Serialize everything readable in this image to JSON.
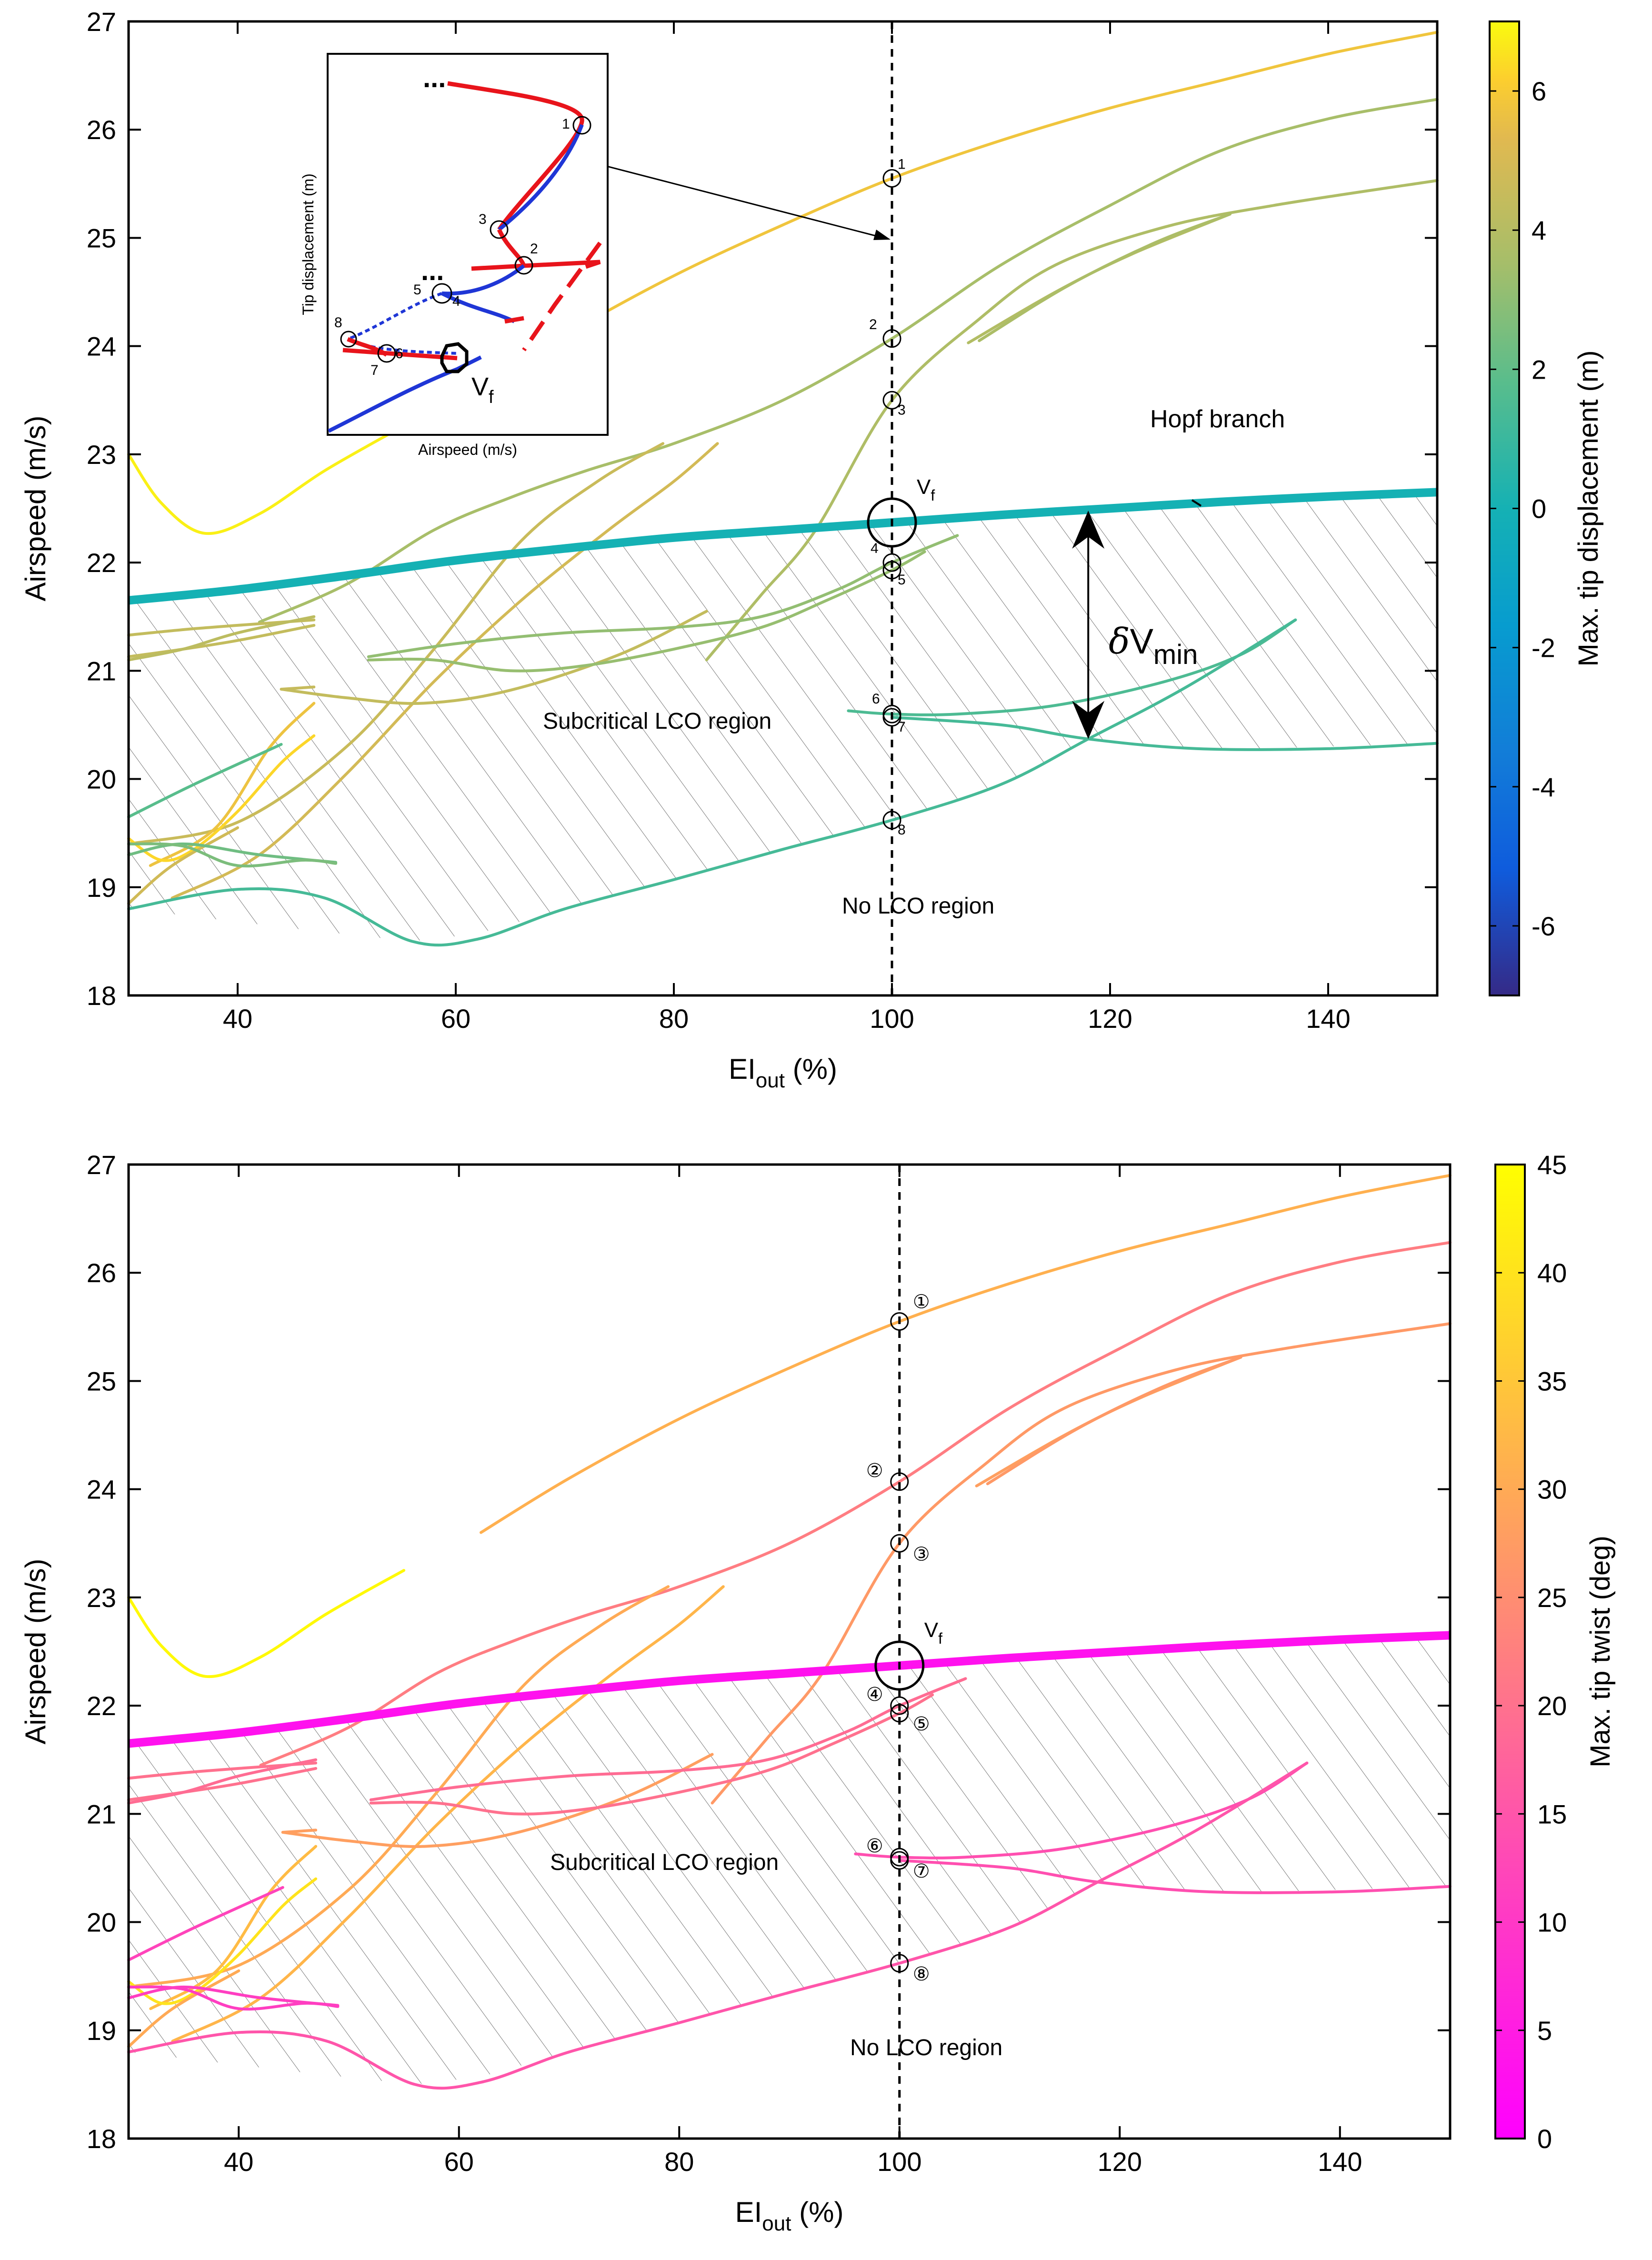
{
  "figure": {
    "panel_count": 2
  },
  "chart_data": [
    {
      "type": "line",
      "panel": "top",
      "xlabel": {
        "main": "EI",
        "sub": "out",
        "suffix": " (%)"
      },
      "ylabel": "Airspeed (m/s)",
      "xlim": [
        30,
        150
      ],
      "ylim": [
        18,
        27
      ],
      "xticks": [
        40,
        60,
        80,
        100,
        120,
        140
      ],
      "yticks": [
        18,
        19,
        20,
        21,
        22,
        23,
        24,
        25,
        26,
        27
      ],
      "colorbar": {
        "label": "Max. tip displacement (m)",
        "range": [
          -7,
          7
        ],
        "ticks": [
          -6,
          -4,
          -2,
          0,
          2,
          4,
          6
        ],
        "colormap": "parula",
        "stops": [
          "#352a87",
          "#0363e1",
          "#1485d4",
          "#06a7c6",
          "#38b99e",
          "#92bf73",
          "#d9ba56",
          "#fcce2e",
          "#f9fb0e"
        ]
      },
      "annotations": {
        "hopf_label": "Hopf branch",
        "subcritical_label": "Subcritical LCO region",
        "no_lco_label": "No LCO region",
        "vf_main": "V",
        "vf_sub": "f",
        "delta_prefix": "δ",
        "delta_main": "V",
        "delta_sub": "min"
      },
      "point_label_style": "plain",
      "inset": {
        "xlabel": "Airspeed (m/s)",
        "ylabel": "Tip displacement (m)",
        "ellipsis": "...",
        "vf_main": "V",
        "vf_sub": "f",
        "point_labels": [
          "1",
          "2",
          "3",
          "4",
          "5",
          "6",
          "7",
          "8"
        ]
      }
    },
    {
      "type": "line",
      "panel": "bottom",
      "xlabel": {
        "main": "EI",
        "sub": "out",
        "suffix": " (%)"
      },
      "ylabel": "Airspeed (m/s)",
      "xlim": [
        30,
        150
      ],
      "ylim": [
        18,
        27
      ],
      "xticks": [
        40,
        60,
        80,
        100,
        120,
        140
      ],
      "yticks": [
        18,
        19,
        20,
        21,
        22,
        23,
        24,
        25,
        26,
        27
      ],
      "colorbar": {
        "label": "Max. tip twist (deg)",
        "range": [
          0,
          45
        ],
        "ticks": [
          0,
          5,
          10,
          15,
          20,
          25,
          30,
          35,
          40,
          45
        ],
        "colormap": "spring",
        "stops": [
          "#ff00ff",
          "#ffffff00",
          "#ffff00"
        ]
      },
      "annotations": {
        "subcritical_label": "Subcritical LCO region",
        "no_lco_label": "No LCO region",
        "vf_main": "V",
        "vf_sub": "f"
      },
      "point_label_style": "circled"
    }
  ],
  "shared": {
    "vertical_line_x": 100,
    "flutter_point": {
      "x": 100,
      "y": 22.37
    },
    "marked_points": [
      {
        "label": "1",
        "circled": "①",
        "x": 100,
        "y": 25.55
      },
      {
        "label": "2",
        "circled": "②",
        "x": 100,
        "y": 24.07
      },
      {
        "label": "3",
        "circled": "③",
        "x": 100,
        "y": 23.5
      },
      {
        "label": "4",
        "circled": "④",
        "x": 100,
        "y": 22.0
      },
      {
        "label": "5",
        "circled": "⑤",
        "x": 100,
        "y": 21.93
      },
      {
        "label": "6",
        "circled": "⑥",
        "x": 100,
        "y": 20.6
      },
      {
        "label": "7",
        "circled": "⑦",
        "x": 100,
        "y": 20.57
      },
      {
        "label": "8",
        "circled": "⑧",
        "x": 100,
        "y": 19.62
      }
    ],
    "delta_vmin": {
      "x": 118,
      "y_low": 20.37,
      "y_high": 22.48
    },
    "hopf_branch": {
      "disp": 0.0,
      "twist": 3,
      "points": [
        [
          30,
          21.65
        ],
        [
          40,
          21.75
        ],
        [
          50,
          21.88
        ],
        [
          60,
          22.02
        ],
        [
          70,
          22.13
        ],
        [
          80,
          22.23
        ],
        [
          90,
          22.3
        ],
        [
          100,
          22.37
        ],
        [
          110,
          22.44
        ],
        [
          120,
          22.5
        ],
        [
          130,
          22.56
        ],
        [
          140,
          22.61
        ],
        [
          150,
          22.65
        ]
      ]
    },
    "hatched_region": [
      [
        30,
        21.65
      ],
      [
        40,
        21.75
      ],
      [
        50,
        21.88
      ],
      [
        60,
        22.02
      ],
      [
        70,
        22.13
      ],
      [
        80,
        22.23
      ],
      [
        90,
        22.3
      ],
      [
        100,
        22.37
      ],
      [
        110,
        22.44
      ],
      [
        120,
        22.5
      ],
      [
        130,
        22.56
      ],
      [
        140,
        22.61
      ],
      [
        150,
        22.65
      ],
      [
        150,
        20.33
      ],
      [
        140,
        20.3
      ],
      [
        130,
        20.27
      ],
      [
        118,
        20.37
      ],
      [
        110,
        19.95
      ],
      [
        100,
        19.62
      ],
      [
        90,
        19.35
      ],
      [
        80,
        19.07
      ],
      [
        70,
        18.8
      ],
      [
        62,
        18.57
      ],
      [
        56,
        18.5
      ],
      [
        45,
        18.62
      ],
      [
        30,
        18.8
      ]
    ],
    "lco_branches": [
      {
        "disp": 6.8,
        "twist": 44,
        "points": [
          [
            30,
            23.0
          ],
          [
            33,
            22.55
          ],
          [
            37,
            22.27
          ],
          [
            42,
            22.45
          ],
          [
            48,
            22.85
          ],
          [
            55,
            23.25
          ]
        ]
      },
      {
        "disp": 5.8,
        "twist": 31,
        "points": [
          [
            62,
            23.6
          ],
          [
            70,
            24.1
          ],
          [
            80,
            24.65
          ],
          [
            90,
            25.12
          ],
          [
            100,
            25.55
          ],
          [
            110,
            25.9
          ],
          [
            120,
            26.2
          ],
          [
            130,
            26.45
          ],
          [
            140,
            26.7
          ],
          [
            150,
            26.9
          ]
        ]
      },
      {
        "disp": 3.6,
        "twist": 22,
        "points": [
          [
            42,
            21.45
          ],
          [
            50,
            21.8
          ],
          [
            58,
            22.3
          ],
          [
            65,
            22.6
          ],
          [
            72,
            22.85
          ],
          [
            80,
            23.1
          ],
          [
            90,
            23.5
          ],
          [
            100,
            24.07
          ],
          [
            110,
            24.75
          ],
          [
            120,
            25.3
          ],
          [
            130,
            25.8
          ],
          [
            140,
            26.1
          ],
          [
            150,
            26.28
          ]
        ]
      },
      {
        "disp": 3.8,
        "twist": 27,
        "points": [
          [
            83,
            21.1
          ],
          [
            88,
            21.7
          ],
          [
            93,
            22.3
          ],
          [
            100,
            23.5
          ],
          [
            108,
            24.25
          ],
          [
            115,
            24.75
          ],
          [
            125,
            25.1
          ],
          [
            135,
            25.3
          ],
          [
            150,
            25.53
          ]
        ]
      },
      {
        "disp": 3.9,
        "twist": 28,
        "points": [
          [
            107,
            24.03
          ],
          [
            115,
            24.5
          ],
          [
            122,
            24.85
          ],
          [
            131,
            25.22
          ]
        ]
      },
      {
        "disp": 3.7,
        "twist": 27,
        "points": [
          [
            108,
            24.05
          ],
          [
            116,
            24.55
          ],
          [
            124,
            24.95
          ],
          [
            131,
            25.22
          ]
        ]
      },
      {
        "disp": 4.6,
        "twist": 30,
        "points": [
          [
            30,
            19.4
          ],
          [
            40,
            19.6
          ],
          [
            50,
            20.3
          ],
          [
            58,
            21.2
          ],
          [
            66,
            22.2
          ],
          [
            73,
            22.75
          ],
          [
            79,
            23.1
          ]
        ]
      },
      {
        "disp": 4.9,
        "twist": 32,
        "points": [
          [
            34,
            18.9
          ],
          [
            42,
            19.3
          ],
          [
            50,
            20.05
          ],
          [
            58,
            20.9
          ],
          [
            66,
            21.65
          ],
          [
            74,
            22.3
          ],
          [
            80,
            22.75
          ],
          [
            84,
            23.1
          ]
        ]
      },
      {
        "disp": 5.7,
        "twist": 33,
        "points": [
          [
            32,
            19.2
          ],
          [
            38,
            19.55
          ],
          [
            43,
            20.3
          ],
          [
            47,
            20.7
          ]
        ]
      },
      {
        "disp": 6.3,
        "twist": 40,
        "points": [
          [
            30,
            19.45
          ],
          [
            33,
            19.25
          ],
          [
            36,
            19.35
          ],
          [
            40,
            19.7
          ],
          [
            44,
            20.15
          ],
          [
            47,
            20.4
          ]
        ]
      },
      {
        "disp": 4.8,
        "twist": 30,
        "points": [
          [
            30,
            18.85
          ],
          [
            34,
            19.2
          ],
          [
            40,
            19.55
          ]
        ]
      },
      {
        "disp": 4.4,
        "twist": 28,
        "points": [
          [
            44,
            20.83
          ],
          [
            50,
            20.75
          ],
          [
            57,
            20.7
          ],
          [
            65,
            20.82
          ],
          [
            75,
            21.15
          ],
          [
            83,
            21.55
          ]
        ]
      },
      {
        "disp": 4.5,
        "twist": 28,
        "points": [
          [
            44,
            20.83
          ],
          [
            47,
            20.85
          ]
        ]
      },
      {
        "disp": 3.1,
        "twist": 19,
        "points": [
          [
            52,
            21.13
          ],
          [
            60,
            21.25
          ],
          [
            70,
            21.35
          ],
          [
            80,
            21.4
          ],
          [
            88,
            21.5
          ],
          [
            95,
            21.75
          ],
          [
            100,
            22.0
          ],
          [
            106,
            22.25
          ]
        ]
      },
      {
        "disp": 3.2,
        "twist": 20,
        "points": [
          [
            52,
            21.1
          ],
          [
            58,
            21.1
          ],
          [
            65,
            21.0
          ],
          [
            72,
            21.05
          ],
          [
            80,
            21.2
          ],
          [
            88,
            21.4
          ],
          [
            94,
            21.65
          ],
          [
            100,
            21.93
          ],
          [
            103,
            22.1
          ]
        ]
      },
      {
        "disp": 4.4,
        "twist": 20,
        "points": [
          [
            30,
            21.33
          ],
          [
            35,
            21.38
          ],
          [
            40,
            21.42
          ],
          [
            47,
            21.47
          ]
        ]
      },
      {
        "disp": 4.4,
        "twist": 20,
        "points": [
          [
            30,
            21.13
          ],
          [
            35,
            21.2
          ],
          [
            40,
            21.28
          ],
          [
            47,
            21.42
          ]
        ]
      },
      {
        "disp": 4.2,
        "twist": 19,
        "points": [
          [
            30,
            21.1
          ],
          [
            35,
            21.2
          ],
          [
            40,
            21.35
          ],
          [
            47,
            21.5
          ]
        ]
      },
      {
        "disp": 1.5,
        "twist": 14,
        "points": [
          [
            96,
            20.63
          ],
          [
            100,
            20.6
          ],
          [
            106,
            20.6
          ],
          [
            115,
            20.68
          ],
          [
            125,
            20.9
          ],
          [
            132,
            21.15
          ],
          [
            137,
            21.47
          ]
        ]
      },
      {
        "disp": 1.3,
        "twist": 14,
        "points": [
          [
            100,
            20.57
          ],
          [
            110,
            20.5
          ],
          [
            118,
            20.37
          ],
          [
            128,
            20.28
          ],
          [
            140,
            20.28
          ],
          [
            150,
            20.33
          ]
        ]
      },
      {
        "disp": 1.3,
        "twist": 15,
        "points": [
          [
            30,
            18.8
          ],
          [
            40,
            18.98
          ],
          [
            48,
            18.9
          ],
          [
            56,
            18.5
          ],
          [
            62,
            18.52
          ],
          [
            70,
            18.8
          ],
          [
            80,
            19.07
          ],
          [
            90,
            19.35
          ],
          [
            100,
            19.62
          ],
          [
            110,
            19.95
          ],
          [
            118,
            20.37
          ],
          [
            127,
            20.85
          ],
          [
            137,
            21.47
          ]
        ]
      },
      {
        "disp": 1.8,
        "twist": 12,
        "points": [
          [
            30,
            19.65
          ],
          [
            36,
            19.95
          ],
          [
            44,
            20.32
          ]
        ]
      },
      {
        "disp": 2.3,
        "twist": 11,
        "points": [
          [
            30,
            19.3
          ],
          [
            35,
            19.4
          ],
          [
            42,
            19.3
          ],
          [
            49,
            19.23
          ]
        ]
      },
      {
        "disp": 2.6,
        "twist": 11,
        "points": [
          [
            30,
            19.4
          ],
          [
            35,
            19.38
          ],
          [
            40,
            19.2
          ],
          [
            46,
            19.25
          ],
          [
            49,
            19.22
          ]
        ]
      }
    ]
  }
}
